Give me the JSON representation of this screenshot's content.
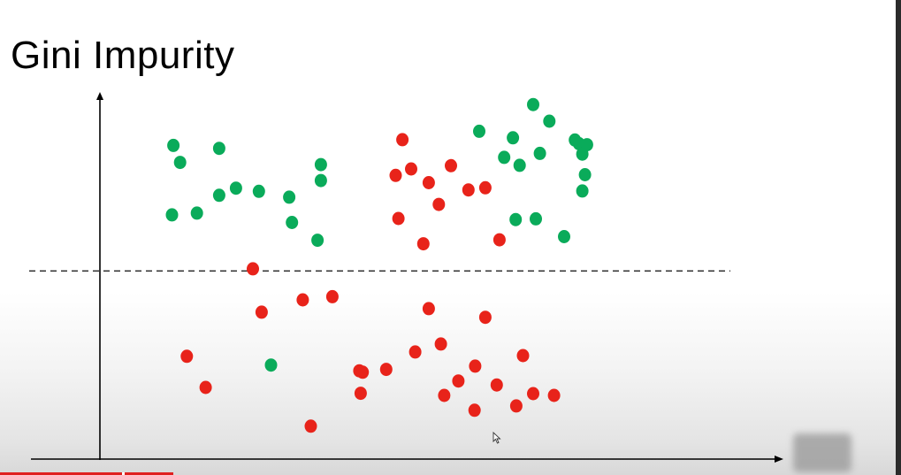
{
  "slide": {
    "title": "Gini Impurity"
  },
  "colors": {
    "green": "#0aab5a",
    "red": "#e8231a",
    "axis": "#000000",
    "split_line": "#222222"
  },
  "icons": {
    "cursor": "mouse-pointer-icon"
  },
  "chart_data": {
    "type": "scatter",
    "title": "",
    "xlabel": "",
    "ylabel": "",
    "xlim": [
      0,
      100
    ],
    "ylim": [
      0,
      100
    ],
    "grid": false,
    "axis_ticks": false,
    "split_line_y": 52,
    "split_line_style": "dashed",
    "series": [
      {
        "color": "green",
        "points": [
          [
            10.9,
            86.7
          ],
          [
            11.9,
            82.0
          ],
          [
            17.7,
            85.9
          ],
          [
            17.7,
            72.9
          ],
          [
            20.2,
            74.9
          ],
          [
            10.7,
            67.5
          ],
          [
            14.4,
            68.0
          ],
          [
            23.6,
            74.0
          ],
          [
            28.1,
            72.4
          ],
          [
            28.5,
            65.4
          ],
          [
            32.8,
            81.4
          ],
          [
            32.8,
            77.0
          ],
          [
            32.3,
            60.5
          ],
          [
            56.3,
            90.6
          ],
          [
            61.3,
            88.8
          ],
          [
            66.7,
            93.4
          ],
          [
            60.0,
            83.4
          ],
          [
            62.3,
            81.2
          ],
          [
            65.3,
            84.5
          ],
          [
            70.5,
            88.2
          ],
          [
            71.1,
            87.2
          ],
          [
            72.3,
            86.9
          ],
          [
            71.6,
            84.3
          ],
          [
            72.0,
            78.6
          ],
          [
            71.6,
            74.1
          ],
          [
            61.7,
            66.2
          ],
          [
            64.7,
            66.4
          ],
          [
            68.9,
            61.5
          ],
          [
            25.4,
            26.0
          ],
          [
            64.3,
            98.0
          ]
        ]
      },
      {
        "color": "red",
        "points": [
          [
            44.9,
            88.3
          ],
          [
            46.2,
            80.2
          ],
          [
            43.9,
            78.4
          ],
          [
            48.8,
            76.4
          ],
          [
            52.1,
            81.1
          ],
          [
            50.3,
            70.4
          ],
          [
            54.7,
            74.4
          ],
          [
            57.2,
            75.0
          ],
          [
            44.3,
            66.5
          ],
          [
            48.0,
            59.5
          ],
          [
            59.3,
            60.6
          ],
          [
            22.7,
            52.6
          ],
          [
            30.1,
            44.0
          ],
          [
            34.5,
            44.9
          ],
          [
            24.0,
            40.6
          ],
          [
            48.8,
            41.6
          ],
          [
            57.2,
            39.2
          ],
          [
            50.6,
            31.8
          ],
          [
            46.8,
            29.6
          ],
          [
            42.5,
            24.8
          ],
          [
            38.5,
            24.4
          ],
          [
            39.0,
            24.0
          ],
          [
            55.7,
            25.7
          ],
          [
            58.9,
            20.5
          ],
          [
            62.8,
            28.6
          ],
          [
            53.2,
            21.6
          ],
          [
            38.7,
            18.2
          ],
          [
            12.9,
            28.4
          ],
          [
            15.7,
            19.8
          ],
          [
            51.1,
            17.6
          ],
          [
            55.6,
            13.5
          ],
          [
            61.8,
            14.7
          ],
          [
            64.3,
            18.1
          ],
          [
            67.4,
            17.6
          ],
          [
            31.3,
            9.1
          ]
        ]
      }
    ]
  }
}
